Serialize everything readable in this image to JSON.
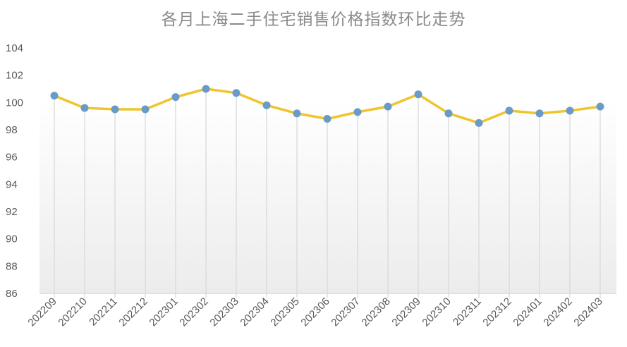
{
  "chart_data": {
    "type": "line",
    "title": "各月上海二手住宅销售价格指数环比走势",
    "xlabel": "",
    "ylabel": "",
    "ylim": [
      86,
      104
    ],
    "yticks": [
      86,
      88,
      90,
      92,
      94,
      96,
      98,
      100,
      102,
      104
    ],
    "grid": false,
    "vertical_drop_lines": true,
    "legend": "none",
    "categories": [
      "202209",
      "202210",
      "202211",
      "202212",
      "202301",
      "202302",
      "202303",
      "202304",
      "202305",
      "202306",
      "202307",
      "202308",
      "202309",
      "202310",
      "202311",
      "202312",
      "202401",
      "202402",
      "202403"
    ],
    "series": [
      {
        "values": [
          100.5,
          99.6,
          99.5,
          99.5,
          100.4,
          101.0,
          100.7,
          99.8,
          99.2,
          98.8,
          99.3,
          99.7,
          100.6,
          99.2,
          98.5,
          99.4,
          99.2,
          99.4,
          99.7
        ]
      }
    ],
    "colors": {
      "line": "#eec52c",
      "marker": "#6a9bc8",
      "drop_line": "#d9d9d9",
      "axis": "#d9d9d9",
      "title": "#8a8a8a",
      "tick_text": "#595959"
    }
  }
}
